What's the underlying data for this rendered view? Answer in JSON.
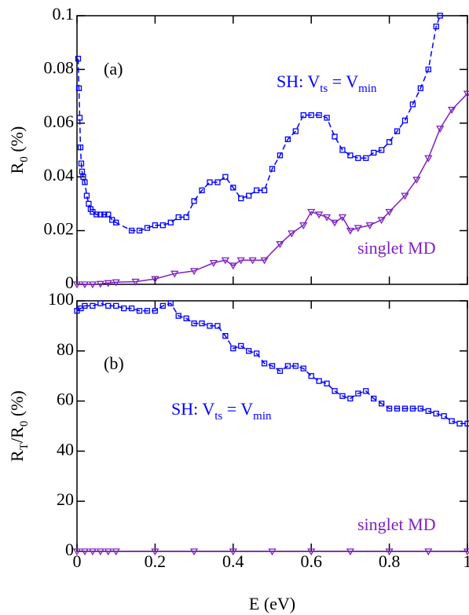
{
  "chart_data": [
    {
      "type": "line",
      "panel_label": "(a)",
      "y_label": [
        {
          "text": "R"
        },
        {
          "text": "0",
          "sub": true
        },
        {
          "text": " (%)"
        }
      ],
      "xlim": [
        0,
        1
      ],
      "xticks": [
        0,
        0.2,
        0.4,
        0.6,
        0.8,
        1
      ],
      "ylim": [
        0,
        0.1
      ],
      "yticks": [
        0,
        0.02,
        0.04,
        0.06,
        0.08,
        0.1
      ],
      "annotations": [
        {
          "color": "#0000ff",
          "parts": [
            {
              "text": "SH: V"
            },
            {
              "text": "ts",
              "sub": true
            },
            {
              "text": " = V"
            },
            {
              "text": "min",
              "sub": true
            }
          ]
        },
        {
          "color": "#8020c0",
          "parts": [
            {
              "text": "singlet MD"
            }
          ]
        }
      ],
      "series": [
        {
          "name": "SH",
          "color": "#0000ff",
          "marker": "square",
          "dashed": true,
          "x": [
            0.003,
            0.005,
            0.007,
            0.009,
            0.011,
            0.013,
            0.016,
            0.02,
            0.025,
            0.03,
            0.035,
            0.04,
            0.05,
            0.06,
            0.07,
            0.08,
            0.09,
            0.1,
            0.14,
            0.16,
            0.18,
            0.2,
            0.22,
            0.24,
            0.26,
            0.28,
            0.3,
            0.32,
            0.34,
            0.36,
            0.38,
            0.4,
            0.42,
            0.44,
            0.46,
            0.48,
            0.5,
            0.52,
            0.54,
            0.56,
            0.58,
            0.6,
            0.62,
            0.64,
            0.66,
            0.68,
            0.7,
            0.72,
            0.74,
            0.76,
            0.78,
            0.8,
            0.82,
            0.84,
            0.86,
            0.88,
            0.9,
            0.92,
            0.93
          ],
          "values": [
            0.084,
            0.073,
            0.062,
            0.051,
            0.045,
            0.042,
            0.04,
            0.038,
            0.033,
            0.03,
            0.028,
            0.027,
            0.026,
            0.026,
            0.026,
            0.026,
            0.024,
            0.023,
            0.02,
            0.02,
            0.021,
            0.022,
            0.022,
            0.023,
            0.025,
            0.025,
            0.031,
            0.035,
            0.038,
            0.038,
            0.04,
            0.036,
            0.032,
            0.033,
            0.035,
            0.035,
            0.043,
            0.048,
            0.054,
            0.057,
            0.063,
            0.063,
            0.063,
            0.062,
            0.055,
            0.05,
            0.048,
            0.047,
            0.047,
            0.049,
            0.05,
            0.053,
            0.057,
            0.061,
            0.067,
            0.073,
            0.08,
            0.096,
            0.1
          ]
        },
        {
          "name": "singlet MD",
          "color": "#8020c0",
          "marker": "triangle",
          "dashed": false,
          "x": [
            0,
            0.02,
            0.04,
            0.06,
            0.08,
            0.1,
            0.15,
            0.2,
            0.25,
            0.3,
            0.35,
            0.38,
            0.4,
            0.42,
            0.45,
            0.48,
            0.52,
            0.55,
            0.58,
            0.6,
            0.62,
            0.64,
            0.66,
            0.68,
            0.7,
            0.72,
            0.75,
            0.78,
            0.8,
            0.84,
            0.87,
            0.9,
            0.93,
            0.96,
            1.0
          ],
          "values": [
            0,
            0,
            0,
            0.0002,
            0.0005,
            0.0008,
            0.001,
            0.002,
            0.004,
            0.005,
            0.008,
            0.009,
            0.007,
            0.009,
            0.009,
            0.009,
            0.015,
            0.019,
            0.022,
            0.027,
            0.026,
            0.025,
            0.023,
            0.025,
            0.02,
            0.021,
            0.022,
            0.024,
            0.027,
            0.033,
            0.039,
            0.047,
            0.058,
            0.065,
            0.071
          ]
        }
      ]
    },
    {
      "type": "line",
      "panel_label": "(b)",
      "x_label": "E (eV)",
      "y_label": [
        {
          "text": "R"
        },
        {
          "text": "T",
          "sub": true
        },
        {
          "text": "/R"
        },
        {
          "text": "0",
          "sub": true
        },
        {
          "text": " (%)"
        }
      ],
      "xlim": [
        0,
        1
      ],
      "xticks": [
        0,
        0.2,
        0.4,
        0.6,
        0.8,
        1
      ],
      "ylim": [
        0,
        100
      ],
      "yticks": [
        0,
        20,
        40,
        60,
        80,
        100
      ],
      "annotations": [
        {
          "color": "#0000ff",
          "parts": [
            {
              "text": "SH: V"
            },
            {
              "text": "ts",
              "sub": true
            },
            {
              "text": " = V"
            },
            {
              "text": "min",
              "sub": true
            }
          ]
        },
        {
          "color": "#8020c0",
          "parts": [
            {
              "text": "singlet MD"
            }
          ]
        }
      ],
      "series": [
        {
          "name": "SH",
          "color": "#0000ff",
          "marker": "square",
          "dashed": true,
          "x": [
            0,
            0.01,
            0.02,
            0.04,
            0.06,
            0.08,
            0.1,
            0.12,
            0.14,
            0.16,
            0.18,
            0.2,
            0.22,
            0.24,
            0.26,
            0.28,
            0.3,
            0.32,
            0.34,
            0.36,
            0.38,
            0.4,
            0.42,
            0.44,
            0.46,
            0.48,
            0.5,
            0.52,
            0.54,
            0.56,
            0.58,
            0.6,
            0.62,
            0.64,
            0.66,
            0.68,
            0.7,
            0.72,
            0.74,
            0.76,
            0.78,
            0.8,
            0.82,
            0.84,
            0.86,
            0.88,
            0.9,
            0.92,
            0.94,
            0.96,
            0.98,
            1.0
          ],
          "values": [
            96,
            97,
            98,
            98,
            99,
            98,
            98,
            97,
            97,
            96,
            96,
            96,
            98,
            99,
            94,
            93,
            91,
            91,
            90,
            90,
            86,
            81,
            82,
            80,
            79,
            75,
            74,
            72,
            74,
            74,
            73,
            70,
            68,
            67,
            64,
            62,
            61,
            63,
            64,
            61,
            59,
            57,
            57,
            57,
            57,
            57,
            56,
            55,
            54,
            52,
            51,
            51
          ]
        },
        {
          "name": "singlet MD",
          "color": "#8020c0",
          "marker": "triangle",
          "dashed": false,
          "x": [
            0,
            0.02,
            0.04,
            0.06,
            0.08,
            0.1,
            0.2,
            0.3,
            0.4,
            0.5,
            0.6,
            0.7,
            0.8,
            0.9,
            1.0
          ],
          "values": [
            0,
            0,
            0,
            0,
            0,
            0,
            0,
            0,
            0,
            0,
            0,
            0,
            0,
            0,
            0
          ]
        }
      ]
    }
  ]
}
